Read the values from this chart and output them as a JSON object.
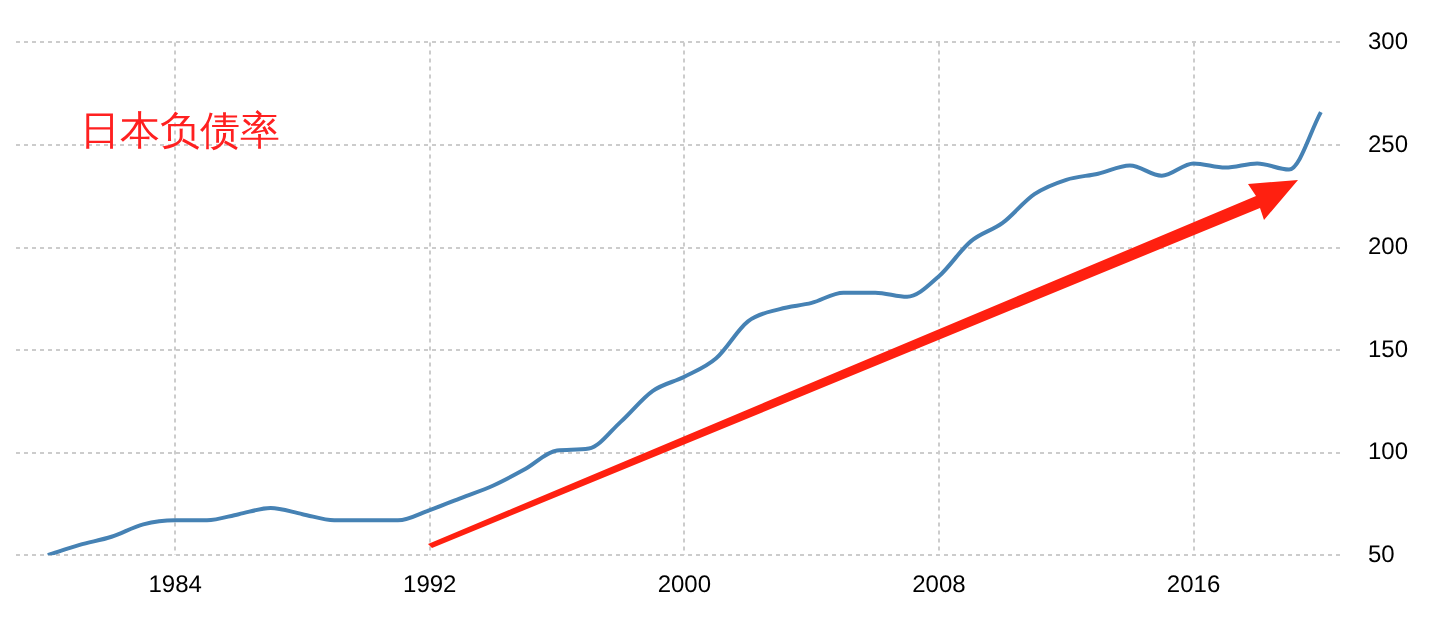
{
  "chart_data": {
    "type": "line",
    "title": "日本负债率",
    "x": [
      1980,
      1981,
      1982,
      1983,
      1984,
      1985,
      1986,
      1987,
      1988,
      1989,
      1990,
      1991,
      1992,
      1993,
      1994,
      1995,
      1996,
      1997,
      1998,
      1999,
      2000,
      2001,
      2002,
      2003,
      2004,
      2005,
      2006,
      2007,
      2008,
      2009,
      2010,
      2011,
      2012,
      2013,
      2014,
      2015,
      2016,
      2017,
      2018,
      2019,
      2020
    ],
    "series": [
      {
        "color": "#4682b4",
        "values": [
          50,
          55,
          59,
          65,
          67,
          67,
          70,
          73,
          70,
          67,
          67,
          67,
          72,
          78,
          84,
          92,
          101,
          102,
          115,
          130,
          137,
          146,
          164,
          170,
          173,
          178,
          178,
          176,
          186,
          203,
          212,
          226,
          233,
          236,
          240,
          235,
          241,
          239,
          241,
          238,
          266
        ]
      }
    ],
    "xlim": [
      1979,
      2020.6
    ],
    "xticks": [
      1984,
      1992,
      2000,
      2008,
      2016
    ],
    "ylim": [
      50,
      300
    ],
    "yticks": [
      50,
      100,
      150,
      200,
      250,
      300
    ],
    "grid": true,
    "legend": false,
    "marker": "none",
    "line_style": "solid"
  }
}
